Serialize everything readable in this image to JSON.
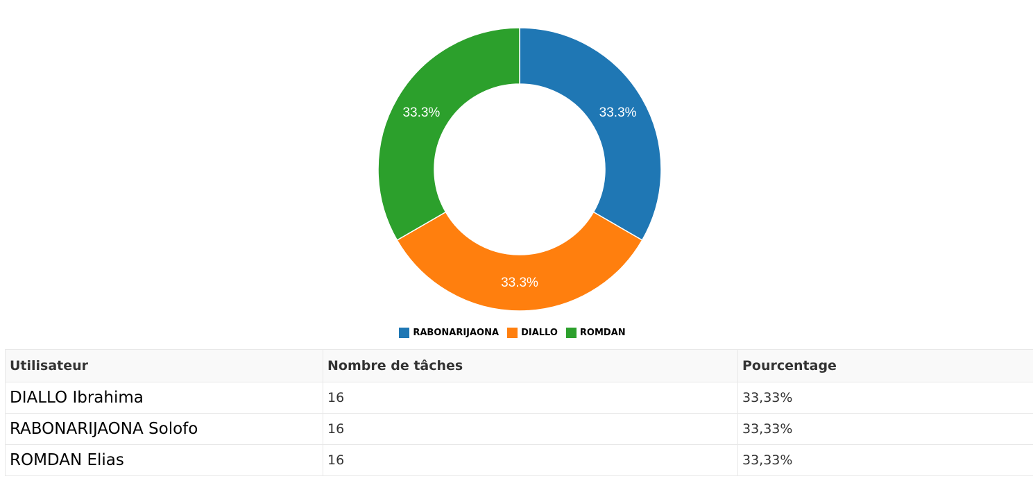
{
  "chart_data": {
    "type": "pie",
    "donut": true,
    "labels": [
      "RABONARIJAONA",
      "DIALLO",
      "ROMDAN"
    ],
    "values": [
      16,
      16,
      16
    ],
    "percent_labels": [
      "33.3%",
      "33.3%",
      "33.3%"
    ],
    "colors": [
      "#1f77b4",
      "#ff7f0e",
      "#2ca02c"
    ],
    "legend_position": "bottom"
  },
  "table": {
    "headers": [
      "Utilisateur",
      "Nombre de tâches",
      "Pourcentage"
    ],
    "rows": [
      [
        "DIALLO Ibrahima",
        "16",
        "33,33%"
      ],
      [
        "RABONARIJAONA Solofo",
        "16",
        "33,33%"
      ],
      [
        "ROMDAN Elias",
        "16",
        "33,33%"
      ]
    ]
  }
}
